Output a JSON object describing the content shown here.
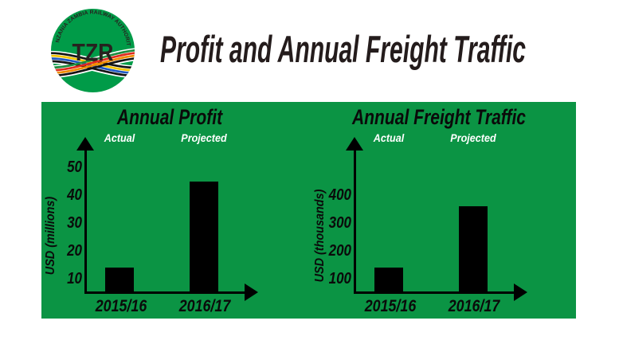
{
  "logo": {
    "arc_text": "TANZANIA ZAMBIA RAILWAY AUTHORITY",
    "monogram": "TZR",
    "circle_color": "#009b48"
  },
  "header": {
    "title": "Profit and Annual Freight Traffic",
    "title_color": "#241c1c"
  },
  "panel": {
    "background_color": "#0b9444"
  },
  "chart_data": [
    {
      "type": "bar",
      "title": "Annual Profit",
      "column_labels": [
        "Actual",
        "Projected"
      ],
      "categories": [
        "2015/16",
        "2016/17"
      ],
      "values": [
        14,
        45
      ],
      "ylabel": "USD (millions)",
      "yticks": [
        10,
        20,
        30,
        40,
        50
      ],
      "ylim": [
        0,
        55
      ],
      "bar_color": "#000000",
      "axis_color": "#000000",
      "column_label_color": "#ffffff",
      "grid": false,
      "legend_position": "top"
    },
    {
      "type": "bar",
      "title": "Annual Freight Traffic",
      "column_labels": [
        "Actual",
        "Projected"
      ],
      "categories": [
        "2015/16",
        "2016/17"
      ],
      "values": [
        140,
        360
      ],
      "ylabel": "USD (thousands)",
      "yticks": [
        100,
        200,
        300,
        400
      ],
      "ylim": [
        0,
        450
      ],
      "bar_color": "#000000",
      "axis_color": "#000000",
      "column_label_color": "#ffffff",
      "grid": false,
      "legend_position": "top"
    }
  ]
}
